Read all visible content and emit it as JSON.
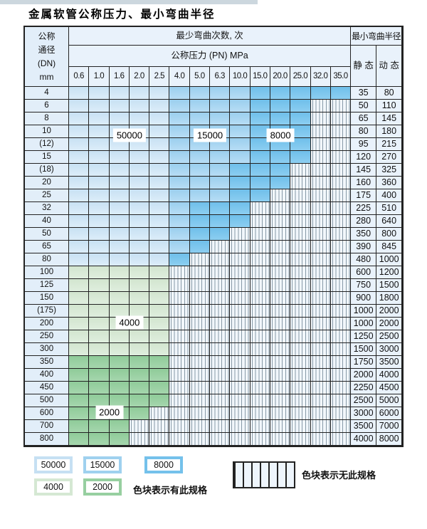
{
  "title": "金属软管公称压力、最小弯曲半径",
  "table": {
    "dn_header_lines": [
      "公称",
      "通径",
      "(DN)",
      "mm"
    ],
    "bend_cycles_header": "最少弯曲次数, 次",
    "pressure_header": "公称压力 (PN) MPa",
    "radius_header": "最小弯曲半径",
    "static_header": "静 态",
    "dynamic_header": "动 态"
  },
  "chart_data": {
    "type": "heatmap",
    "x_axis_label": "公称压力 (PN) MPa",
    "y_axis_label": "公称通径 (DN) mm",
    "pressure_columns": [
      "0.6",
      "1.0",
      "1.6",
      "2.0",
      "2.5",
      "4.0",
      "5.0",
      "6.3",
      "10.0",
      "15.0",
      "20.0",
      "25.0",
      "32.0",
      "35.0"
    ],
    "zones": {
      "b1": {
        "label": "50000",
        "meaning": "最少弯曲次数 50000 次",
        "color": "#cfe5f4"
      },
      "b2": {
        "label": "15000",
        "meaning": "最少弯曲次数 15000 次",
        "color": "#a7d4f0"
      },
      "b3": {
        "label": "8000",
        "meaning": "最少弯曲次数 8000 次",
        "color": "#7bc4ec"
      },
      "g1": {
        "label": "4000",
        "meaning": "最少弯曲次数 4000 次",
        "color": "#d8e9d6"
      },
      "g2": {
        "label": "2000",
        "meaning": "最少弯曲次数 2000 次",
        "color": "#98cfa1"
      },
      "x": {
        "label": "",
        "meaning": "无此规格",
        "color": "hatch"
      }
    },
    "rows": [
      {
        "dn": "4",
        "static": "35",
        "dynamic": "80",
        "spans": [
          [
            "b1",
            5
          ],
          [
            "b2",
            4
          ],
          [
            "b3",
            5
          ]
        ]
      },
      {
        "dn": "6",
        "static": "50",
        "dynamic": "110",
        "spans": [
          [
            "b1",
            5
          ],
          [
            "b2",
            4
          ],
          [
            "b3",
            3
          ]
        ]
      },
      {
        "dn": "8",
        "static": "65",
        "dynamic": "145",
        "spans": [
          [
            "b1",
            5
          ],
          [
            "b2",
            4
          ],
          [
            "b3",
            3
          ]
        ]
      },
      {
        "dn": "10",
        "static": "80",
        "dynamic": "180",
        "spans": [
          [
            "b1",
            5
          ],
          [
            "b2",
            4
          ],
          [
            "b3",
            3
          ]
        ]
      },
      {
        "dn": "(12)",
        "static": "95",
        "dynamic": "215",
        "spans": [
          [
            "b1",
            5
          ],
          [
            "b2",
            4
          ],
          [
            "b3",
            3
          ]
        ]
      },
      {
        "dn": "15",
        "static": "120",
        "dynamic": "270",
        "spans": [
          [
            "b1",
            5
          ],
          [
            "b2",
            4
          ],
          [
            "b3",
            3
          ]
        ]
      },
      {
        "dn": "(18)",
        "static": "145",
        "dynamic": "325",
        "spans": [
          [
            "b1",
            5
          ],
          [
            "b2",
            3
          ],
          [
            "b3",
            3
          ]
        ]
      },
      {
        "dn": "20",
        "static": "160",
        "dynamic": "360",
        "spans": [
          [
            "b1",
            5
          ],
          [
            "b2",
            3
          ],
          [
            "b3",
            3
          ]
        ]
      },
      {
        "dn": "25",
        "static": "175",
        "dynamic": "400",
        "spans": [
          [
            "b1",
            5
          ],
          [
            "b2",
            3
          ],
          [
            "b3",
            2
          ]
        ]
      },
      {
        "dn": "32",
        "static": "225",
        "dynamic": "510",
        "spans": [
          [
            "b1",
            5
          ],
          [
            "b2",
            1
          ],
          [
            "b3",
            3
          ]
        ]
      },
      {
        "dn": "40",
        "static": "280",
        "dynamic": "640",
        "spans": [
          [
            "b1",
            5
          ],
          [
            "b2",
            1
          ],
          [
            "b3",
            3
          ]
        ]
      },
      {
        "dn": "50",
        "static": "350",
        "dynamic": "800",
        "spans": [
          [
            "b1",
            5
          ],
          [
            "b2",
            1
          ],
          [
            "b3",
            2
          ]
        ]
      },
      {
        "dn": "65",
        "static": "390",
        "dynamic": "845",
        "spans": [
          [
            "b1",
            5
          ],
          [
            "b2",
            1
          ],
          [
            "b3",
            1
          ]
        ]
      },
      {
        "dn": "80",
        "static": "480",
        "dynamic": "1000",
        "spans": [
          [
            "b1",
            5
          ],
          [
            "b3",
            1
          ]
        ]
      },
      {
        "dn": "100",
        "static": "600",
        "dynamic": "1200",
        "spans": [
          [
            "g1",
            5
          ]
        ]
      },
      {
        "dn": "125",
        "static": "750",
        "dynamic": "1500",
        "spans": [
          [
            "g1",
            5
          ]
        ]
      },
      {
        "dn": "150",
        "static": "900",
        "dynamic": "1800",
        "spans": [
          [
            "g1",
            5
          ]
        ]
      },
      {
        "dn": "(175)",
        "static": "1000",
        "dynamic": "2000",
        "spans": [
          [
            "g1",
            5
          ]
        ]
      },
      {
        "dn": "200",
        "static": "1000",
        "dynamic": "2000",
        "spans": [
          [
            "g1",
            5
          ]
        ]
      },
      {
        "dn": "250",
        "static": "1250",
        "dynamic": "2500",
        "spans": [
          [
            "g1",
            5
          ]
        ]
      },
      {
        "dn": "300",
        "static": "1500",
        "dynamic": "3000",
        "spans": [
          [
            "g1",
            5
          ]
        ]
      },
      {
        "dn": "350",
        "static": "1750",
        "dynamic": "3500",
        "spans": [
          [
            "g2",
            5
          ]
        ]
      },
      {
        "dn": "400",
        "static": "2000",
        "dynamic": "4000",
        "spans": [
          [
            "g2",
            5
          ]
        ]
      },
      {
        "dn": "450",
        "static": "2250",
        "dynamic": "4500",
        "spans": [
          [
            "g2",
            5
          ]
        ]
      },
      {
        "dn": "500",
        "static": "2500",
        "dynamic": "5000",
        "spans": [
          [
            "g2",
            5
          ]
        ]
      },
      {
        "dn": "600",
        "static": "3000",
        "dynamic": "6000",
        "spans": [
          [
            "g2",
            4
          ]
        ]
      },
      {
        "dn": "700",
        "static": "3500",
        "dynamic": "7000",
        "spans": [
          [
            "g2",
            3
          ]
        ]
      },
      {
        "dn": "800",
        "static": "4000",
        "dynamic": "8000",
        "spans": [
          [
            "g2",
            3
          ]
        ]
      }
    ],
    "zone_labels": [
      {
        "text": "50000",
        "col": 3.0,
        "row": 3.75
      },
      {
        "text": "15000",
        "col": 7.0,
        "row": 3.75
      },
      {
        "text": "8000",
        "col": 10.5,
        "row": 3.75
      },
      {
        "text": "4000",
        "col": 3.0,
        "row": 18.4
      },
      {
        "text": "2000",
        "col": 2.0,
        "row": 25.4
      }
    ]
  },
  "legend": {
    "items": [
      {
        "label": "50000",
        "zone": "b1"
      },
      {
        "label": "15000",
        "zone": "b2"
      },
      {
        "label": "8000",
        "zone": "b3"
      },
      {
        "label": "4000",
        "zone": "g1"
      },
      {
        "label": "2000",
        "zone": "g2"
      }
    ],
    "has_spec_text": "色块表示有此规格",
    "no_spec_text": "色块表示无此规格"
  }
}
